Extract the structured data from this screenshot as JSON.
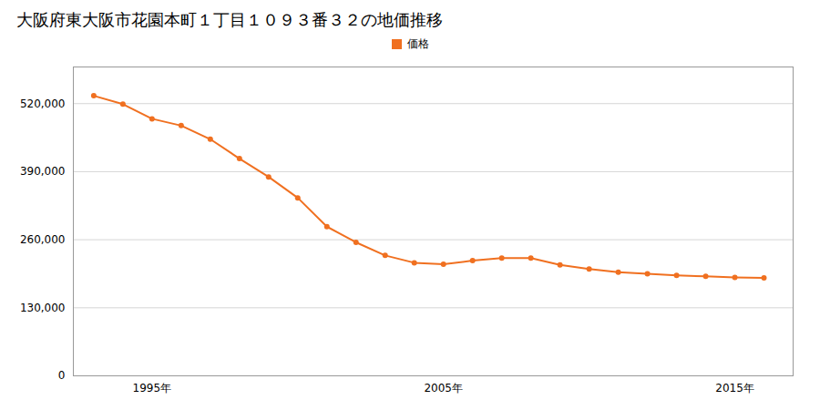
{
  "chart_data": {
    "type": "line",
    "title": "大阪府東大阪市花園本町１丁目１０９３番３２の地価推移",
    "x": [
      1993,
      1994,
      1995,
      1996,
      1997,
      1998,
      1999,
      2000,
      2001,
      2002,
      2003,
      2004,
      2005,
      2006,
      2007,
      2008,
      2009,
      2010,
      2011,
      2012,
      2013,
      2014,
      2015,
      2016
    ],
    "series": [
      {
        "name": "価格",
        "color": "#f07020",
        "marker": "circle",
        "values": [
          535000,
          519000,
          491000,
          478000,
          452000,
          415000,
          380000,
          340000,
          285000,
          255000,
          230000,
          216000,
          213000,
          220000,
          225000,
          225000,
          212000,
          204000,
          198000,
          195000,
          192000,
          190000,
          188000,
          187000
        ]
      }
    ],
    "xlim": [
      1992.3,
      2017.0
    ],
    "xticks": [
      {
        "value": 1995,
        "label": "1995年"
      },
      {
        "value": 2005,
        "label": "2005年"
      },
      {
        "value": 2015,
        "label": "2015年"
      }
    ],
    "ylim": [
      0,
      590000
    ],
    "yticks": [
      0,
      {
        "value": 130000,
        "label": "130,000"
      },
      {
        "value": 260000,
        "label": "260,000"
      },
      {
        "value": 390000,
        "label": "390,000"
      },
      {
        "value": 520000,
        "label": "520,000"
      }
    ],
    "grid": true,
    "legend": "top"
  }
}
